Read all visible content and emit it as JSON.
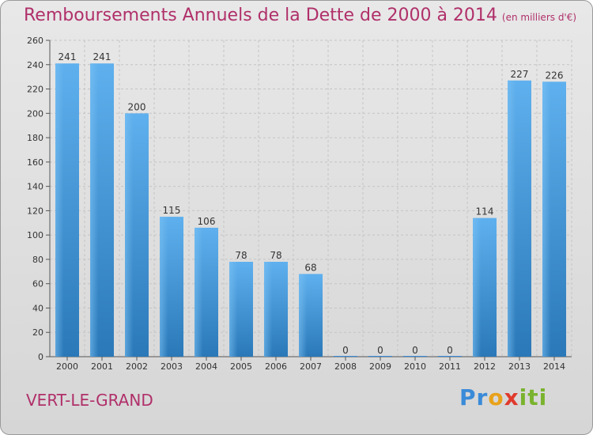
{
  "title": "Remboursements Annuels de la Dette de 2000 à 2014",
  "unit": "(en milliers d'€)",
  "city": "VERT-LE-GRAND",
  "logo": {
    "p1": "Pr",
    "p2": "o",
    "p3": "x",
    "p4": "iti"
  },
  "colors": {
    "title": "#b0306a",
    "bar": "#3a8bd8"
  },
  "chart_data": {
    "type": "bar",
    "categories": [
      "2000",
      "2001",
      "2002",
      "2003",
      "2004",
      "2005",
      "2006",
      "2007",
      "2008",
      "2009",
      "2010",
      "2011",
      "2012",
      "2013",
      "2014"
    ],
    "values": [
      241,
      241,
      200,
      115,
      106,
      78,
      78,
      68,
      0,
      0,
      0,
      0,
      114,
      227,
      226
    ],
    "ylim": [
      0,
      260
    ],
    "yticks": [
      0,
      20,
      40,
      60,
      80,
      100,
      120,
      140,
      160,
      180,
      200,
      220,
      240,
      260
    ],
    "grid": true,
    "legend": "none"
  }
}
